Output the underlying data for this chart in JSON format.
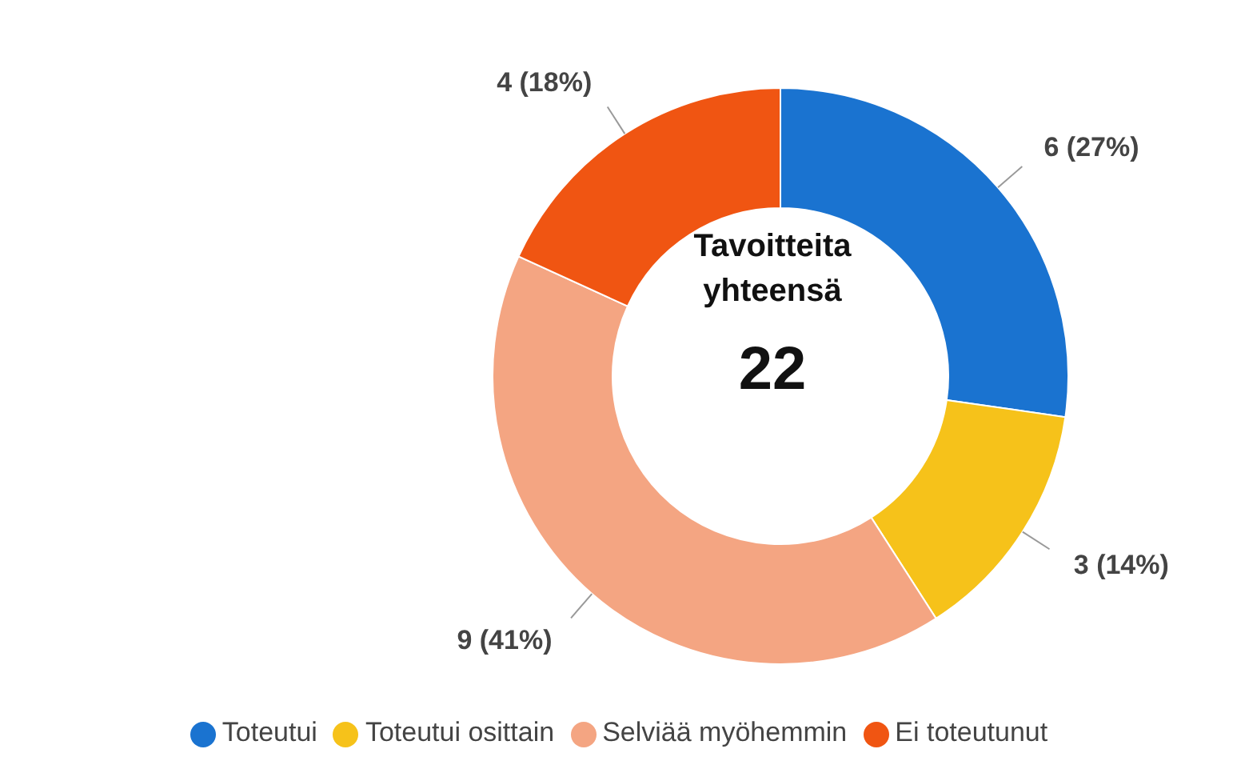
{
  "chart_data": {
    "type": "donut",
    "categories": [
      "Toteutui",
      "Toteutui osittain",
      "Selviää myöhemmin",
      "Ei toteutunut"
    ],
    "values": [
      6,
      3,
      9,
      4
    ],
    "colors": [
      "#1a73d0",
      "#f6c21a",
      "#f4a582",
      "#f05512"
    ],
    "value_labels": [
      "6 (27%)",
      "3 (14%)",
      "9 (41%)",
      "4 (18%)"
    ],
    "annotations": [
      "Tavoitteita yhteensä",
      "22"
    ],
    "legend": "bottom"
  }
}
